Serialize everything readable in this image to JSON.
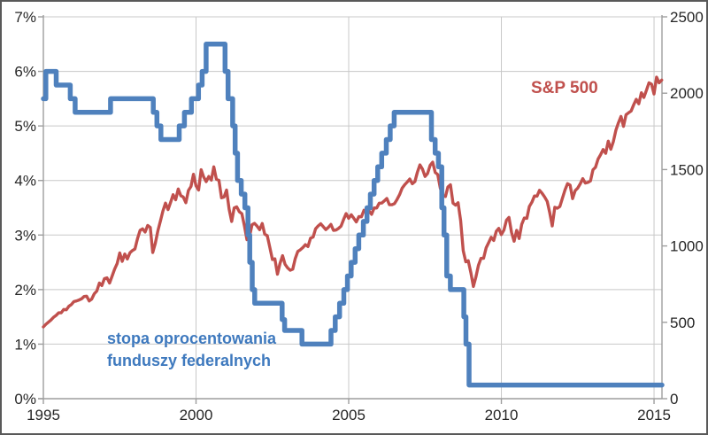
{
  "labels": {
    "sp500": "S&P 500",
    "fedfunds_line1": "stopa oprocentowania",
    "fedfunds_line2": "funduszy federalnych"
  },
  "colors": {
    "fedfunds_line": "#4F81BD",
    "sp500_line": "#C0504D",
    "fedfunds_label": "#3E79BE",
    "sp500_label": "#C0504D",
    "gridline": "#C8C8C8",
    "axis": "#9E9E9E",
    "tick_text": "#262626",
    "frame_border": "#595959",
    "background": "#FFFFFF"
  },
  "chart_data": {
    "type": "line",
    "title": "",
    "legend_position": "inline-labels",
    "grid": true,
    "x_axis": {
      "tick_labels": [
        "1995",
        "2000",
        "2005",
        "2010",
        "2015"
      ],
      "tick_values": [
        1995,
        2000,
        2005,
        2010,
        2015
      ],
      "range": [
        1995,
        2015.26
      ]
    },
    "left_axis": {
      "tick_labels": [
        "0%",
        "1%",
        "2%",
        "3%",
        "4%",
        "5%",
        "6%",
        "7%"
      ],
      "tick_values": [
        0,
        1,
        2,
        3,
        4,
        5,
        6,
        7
      ],
      "range": [
        0,
        7
      ]
    },
    "right_axis": {
      "tick_labels": [
        "0",
        "500",
        "1000",
        "1500",
        "2000",
        "2500"
      ],
      "tick_values": [
        0,
        500,
        1000,
        1500,
        2000,
        2500
      ],
      "range": [
        0,
        2500
      ]
    },
    "series": [
      {
        "name": "S&P 500",
        "axis": "right",
        "draw": "line",
        "color": "#C0504D",
        "stroke_width": 3.4,
        "x_start": 1995,
        "x_interval": 0.0833333,
        "values": [
          470,
          487,
          501,
          515,
          533,
          545,
          562,
          562,
          584,
          582,
          605,
          616,
          636,
          640,
          646,
          654,
          669,
          671,
          640,
          652,
          687,
          705,
          757,
          741,
          786,
          791,
          757,
          801,
          848,
          885,
          954,
          899,
          947,
          915,
          955,
          970,
          980,
          1049,
          1102,
          1112,
          1091,
          1134,
          1121,
          957,
          1017,
          1099,
          1164,
          1229,
          1280,
          1238,
          1286,
          1335,
          1302,
          1373,
          1329,
          1320,
          1283,
          1363,
          1389,
          1469,
          1394,
          1366,
          1499,
          1452,
          1421,
          1455,
          1431,
          1518,
          1437,
          1429,
          1315,
          1320,
          1366,
          1240,
          1160,
          1249,
          1256,
          1224,
          1211,
          1134,
          1041,
          1060,
          1139,
          1148,
          1130,
          1107,
          1147,
          1077,
          1067,
          990,
          911,
          916,
          815,
          886,
          936,
          880,
          856,
          841,
          848,
          917,
          964,
          975,
          990,
          1008,
          996,
          1051,
          1058,
          1112,
          1131,
          1145,
          1126,
          1107,
          1121,
          1141,
          1102,
          1104,
          1115,
          1130,
          1174,
          1212,
          1181,
          1204,
          1181,
          1157,
          1192,
          1191,
          1234,
          1220,
          1229,
          1207,
          1249,
          1248,
          1280,
          1281,
          1295,
          1311,
          1270,
          1270,
          1277,
          1304,
          1336,
          1378,
          1401,
          1418,
          1438,
          1407,
          1421,
          1482,
          1531,
          1503,
          1455,
          1474,
          1527,
          1549,
          1481,
          1468,
          1379,
          1331,
          1323,
          1386,
          1400,
          1280,
          1267,
          1283,
          1166,
          969,
          896,
          903,
          826,
          735,
          798,
          873,
          919,
          919,
          987,
          1021,
          1057,
          1036,
          1096,
          1115,
          1074,
          1104,
          1169,
          1187,
          1089,
          1031,
          1102,
          1049,
          1141,
          1183,
          1181,
          1258,
          1286,
          1327,
          1326,
          1364,
          1345,
          1321,
          1292,
          1219,
          1131,
          1253,
          1247,
          1258,
          1312,
          1366,
          1408,
          1398,
          1310,
          1362,
          1379,
          1407,
          1441,
          1412,
          1416,
          1426,
          1498,
          1515,
          1569,
          1598,
          1631,
          1606,
          1686,
          1633,
          1682,
          1757,
          1806,
          1848,
          1783,
          1859,
          1872,
          1884,
          1924,
          1960,
          1931,
          2003,
          1972,
          2018,
          2068,
          2059,
          1995,
          2105,
          2068,
          2086
        ]
      },
      {
        "name": "stopa oprocentowania funduszy federalnych",
        "axis": "left",
        "draw": "step",
        "color": "#4F81BD",
        "stroke_width": 5.5,
        "points": [
          [
            1995.0,
            5.5
          ],
          [
            1995.08,
            6.0
          ],
          [
            1995.42,
            5.75
          ],
          [
            1995.88,
            5.5
          ],
          [
            1996.04,
            5.25
          ],
          [
            1997.2,
            5.5
          ],
          [
            1998.6,
            5.25
          ],
          [
            1998.72,
            5.0
          ],
          [
            1998.85,
            4.75
          ],
          [
            1999.45,
            5.0
          ],
          [
            1999.62,
            5.25
          ],
          [
            1999.85,
            5.5
          ],
          [
            2000.08,
            5.75
          ],
          [
            2000.2,
            6.0
          ],
          [
            2000.33,
            6.5
          ],
          [
            2000.95,
            6.0
          ],
          [
            2001.05,
            5.5
          ],
          [
            2001.2,
            5.0
          ],
          [
            2001.28,
            4.5
          ],
          [
            2001.36,
            4.0
          ],
          [
            2001.48,
            3.75
          ],
          [
            2001.6,
            3.5
          ],
          [
            2001.7,
            3.0
          ],
          [
            2001.76,
            2.5
          ],
          [
            2001.84,
            2.0
          ],
          [
            2001.92,
            1.75
          ],
          [
            2002.82,
            1.45
          ],
          [
            2002.9,
            1.25
          ],
          [
            2003.47,
            1.0
          ],
          [
            2004.42,
            1.25
          ],
          [
            2004.56,
            1.5
          ],
          [
            2004.7,
            1.75
          ],
          [
            2004.84,
            2.0
          ],
          [
            2004.96,
            2.25
          ],
          [
            2005.08,
            2.5
          ],
          [
            2005.21,
            2.75
          ],
          [
            2005.33,
            3.0
          ],
          [
            2005.48,
            3.25
          ],
          [
            2005.6,
            3.5
          ],
          [
            2005.71,
            3.75
          ],
          [
            2005.83,
            4.0
          ],
          [
            2005.95,
            4.25
          ],
          [
            2006.08,
            4.5
          ],
          [
            2006.23,
            4.75
          ],
          [
            2006.36,
            5.0
          ],
          [
            2006.49,
            5.25
          ],
          [
            2007.71,
            4.75
          ],
          [
            2007.83,
            4.5
          ],
          [
            2007.94,
            4.25
          ],
          [
            2008.05,
            3.5
          ],
          [
            2008.12,
            3.0
          ],
          [
            2008.21,
            2.25
          ],
          [
            2008.33,
            2.0
          ],
          [
            2008.77,
            1.5
          ],
          [
            2008.84,
            1.0
          ],
          [
            2008.94,
            0.25
          ],
          [
            2015.26,
            0.25
          ]
        ]
      }
    ]
  }
}
